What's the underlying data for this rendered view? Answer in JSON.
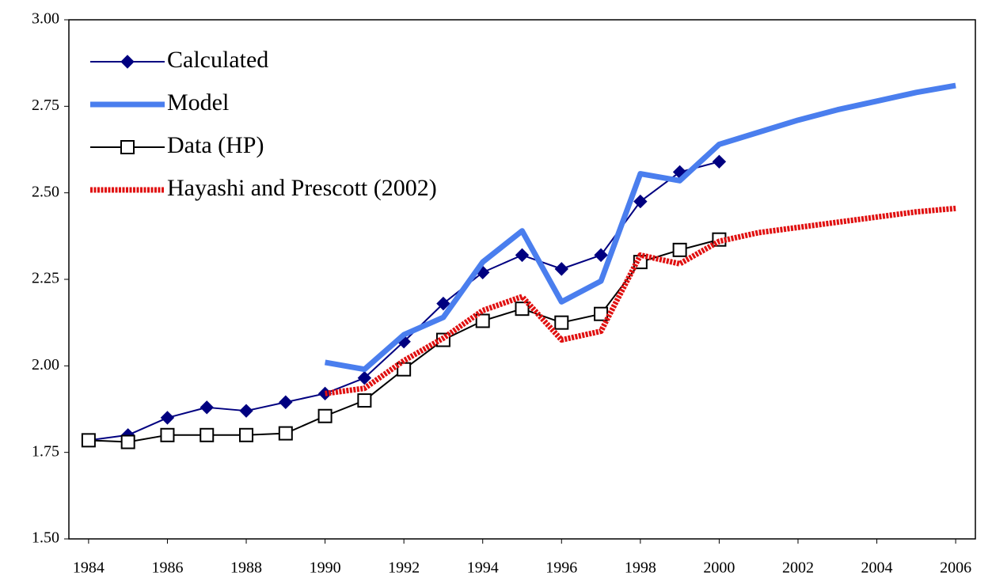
{
  "chart_data": {
    "type": "line",
    "x": [
      1984,
      1985,
      1986,
      1987,
      1988,
      1989,
      1990,
      1991,
      1992,
      1993,
      1994,
      1995,
      1996,
      1997,
      1998,
      1999,
      2000,
      2001,
      2002,
      2003,
      2004,
      2005,
      2006
    ],
    "xlim": [
      1983.5,
      2006.5
    ],
    "xticks": [
      1984,
      1986,
      1988,
      1990,
      1992,
      1994,
      1996,
      1998,
      2000,
      2002,
      2004,
      2006
    ],
    "ylim": [
      1.5,
      3.0
    ],
    "yticks": [
      {
        "value": 1.5,
        "label": "1.50"
      },
      {
        "value": 1.75,
        "label": "1.75"
      },
      {
        "value": 2.0,
        "label": "2.00"
      },
      {
        "value": 2.25,
        "label": "2.25"
      },
      {
        "value": 2.5,
        "label": "2.50"
      },
      {
        "value": 2.75,
        "label": "2.75"
      },
      {
        "value": 3.0,
        "label": "3.00"
      }
    ],
    "legend": "top-left",
    "series": [
      {
        "name": "Calculated",
        "color": "#000080",
        "line_width": 2,
        "marker": "diamond",
        "values": [
          1.785,
          1.8,
          1.85,
          1.88,
          1.87,
          1.895,
          1.92,
          1.965,
          2.07,
          2.18,
          2.27,
          2.32,
          2.28,
          2.32,
          2.475,
          2.56,
          2.59,
          null,
          null,
          null,
          null,
          null,
          null
        ]
      },
      {
        "name": "Model",
        "color": "#4a7eee",
        "line_width": 7,
        "marker": "none",
        "values": [
          null,
          null,
          null,
          null,
          null,
          null,
          2.01,
          1.99,
          2.09,
          2.14,
          2.3,
          2.39,
          2.185,
          2.245,
          2.555,
          2.535,
          2.64,
          2.675,
          2.71,
          2.74,
          2.765,
          2.79,
          2.81
        ]
      },
      {
        "name": "Data (HP)",
        "color": "#000000",
        "line_width": 2,
        "marker": "square",
        "values": [
          1.785,
          1.78,
          1.8,
          1.8,
          1.8,
          1.805,
          1.855,
          1.9,
          1.99,
          2.075,
          2.13,
          2.165,
          2.125,
          2.15,
          2.3,
          2.335,
          2.365,
          null,
          null,
          null,
          null,
          null,
          null
        ]
      },
      {
        "name": "Hayashi and Prescott (2002)",
        "color": "#e01010",
        "line_width": 7,
        "marker": "none",
        "dash": true,
        "values": [
          null,
          null,
          null,
          null,
          null,
          null,
          1.92,
          1.935,
          2.015,
          2.08,
          2.16,
          2.2,
          2.075,
          2.1,
          2.32,
          2.295,
          2.36,
          2.385,
          2.4,
          2.415,
          2.43,
          2.445,
          2.455
        ]
      }
    ]
  }
}
